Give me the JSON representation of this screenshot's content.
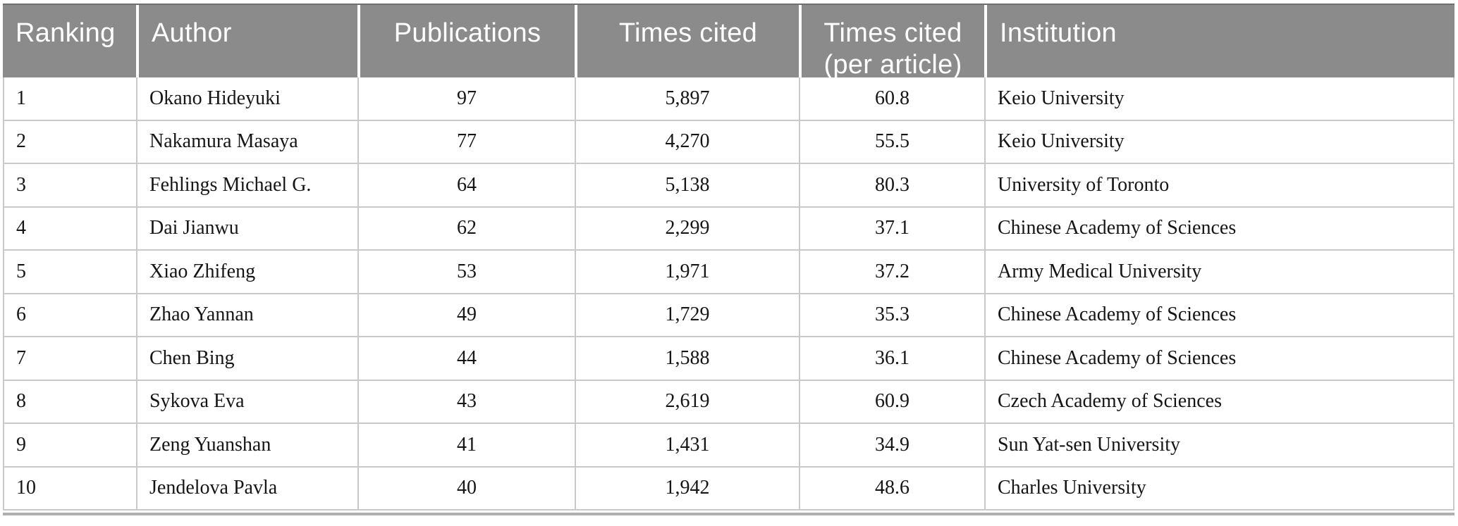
{
  "table": {
    "columns": [
      {
        "key": "ranking",
        "label": "Ranking"
      },
      {
        "key": "author",
        "label": "Author"
      },
      {
        "key": "publications",
        "label": "Publications"
      },
      {
        "key": "times_cited",
        "label": "Times cited"
      },
      {
        "key": "times_cited_per_article",
        "label": "Times cited",
        "sublabel": "(per article)"
      },
      {
        "key": "institution",
        "label": "Institution"
      }
    ],
    "rows": [
      {
        "ranking": "1",
        "author": "Okano Hideyuki",
        "publications": "97",
        "times_cited": "5,897",
        "times_cited_per_article": "60.8",
        "institution": "Keio University"
      },
      {
        "ranking": "2",
        "author": "Nakamura Masaya",
        "publications": "77",
        "times_cited": "4,270",
        "times_cited_per_article": "55.5",
        "institution": "Keio University"
      },
      {
        "ranking": "3",
        "author": "Fehlings Michael G.",
        "publications": "64",
        "times_cited": "5,138",
        "times_cited_per_article": "80.3",
        "institution": "University of Toronto"
      },
      {
        "ranking": "4",
        "author": "Dai Jianwu",
        "publications": "62",
        "times_cited": "2,299",
        "times_cited_per_article": "37.1",
        "institution": "Chinese Academy of Sciences"
      },
      {
        "ranking": "5",
        "author": "Xiao Zhifeng",
        "publications": "53",
        "times_cited": "1,971",
        "times_cited_per_article": "37.2",
        "institution": "Army Medical University"
      },
      {
        "ranking": "6",
        "author": "Zhao Yannan",
        "publications": "49",
        "times_cited": "1,729",
        "times_cited_per_article": "35.3",
        "institution": "Chinese Academy of Sciences"
      },
      {
        "ranking": "7",
        "author": "Chen Bing",
        "publications": "44",
        "times_cited": "1,588",
        "times_cited_per_article": "36.1",
        "institution": "Chinese Academy of Sciences"
      },
      {
        "ranking": "8",
        "author": "Sykova Eva",
        "publications": "43",
        "times_cited": "2,619",
        "times_cited_per_article": "60.9",
        "institution": "Czech Academy of Sciences"
      },
      {
        "ranking": "9",
        "author": "Zeng Yuanshan",
        "publications": "41",
        "times_cited": "1,431",
        "times_cited_per_article": "34.9",
        "institution": "Sun Yat-sen University"
      },
      {
        "ranking": "10",
        "author": "Jendelova Pavla",
        "publications": "40",
        "times_cited": "1,942",
        "times_cited_per_article": "48.6",
        "institution": "Charles University"
      }
    ]
  },
  "colors": {
    "header_background": "#8b8b8b",
    "header_text": "#ffffff",
    "grid_border": "#c9c9c9",
    "bottom_rule": "#b0b0b0",
    "body_text": "#151515"
  }
}
